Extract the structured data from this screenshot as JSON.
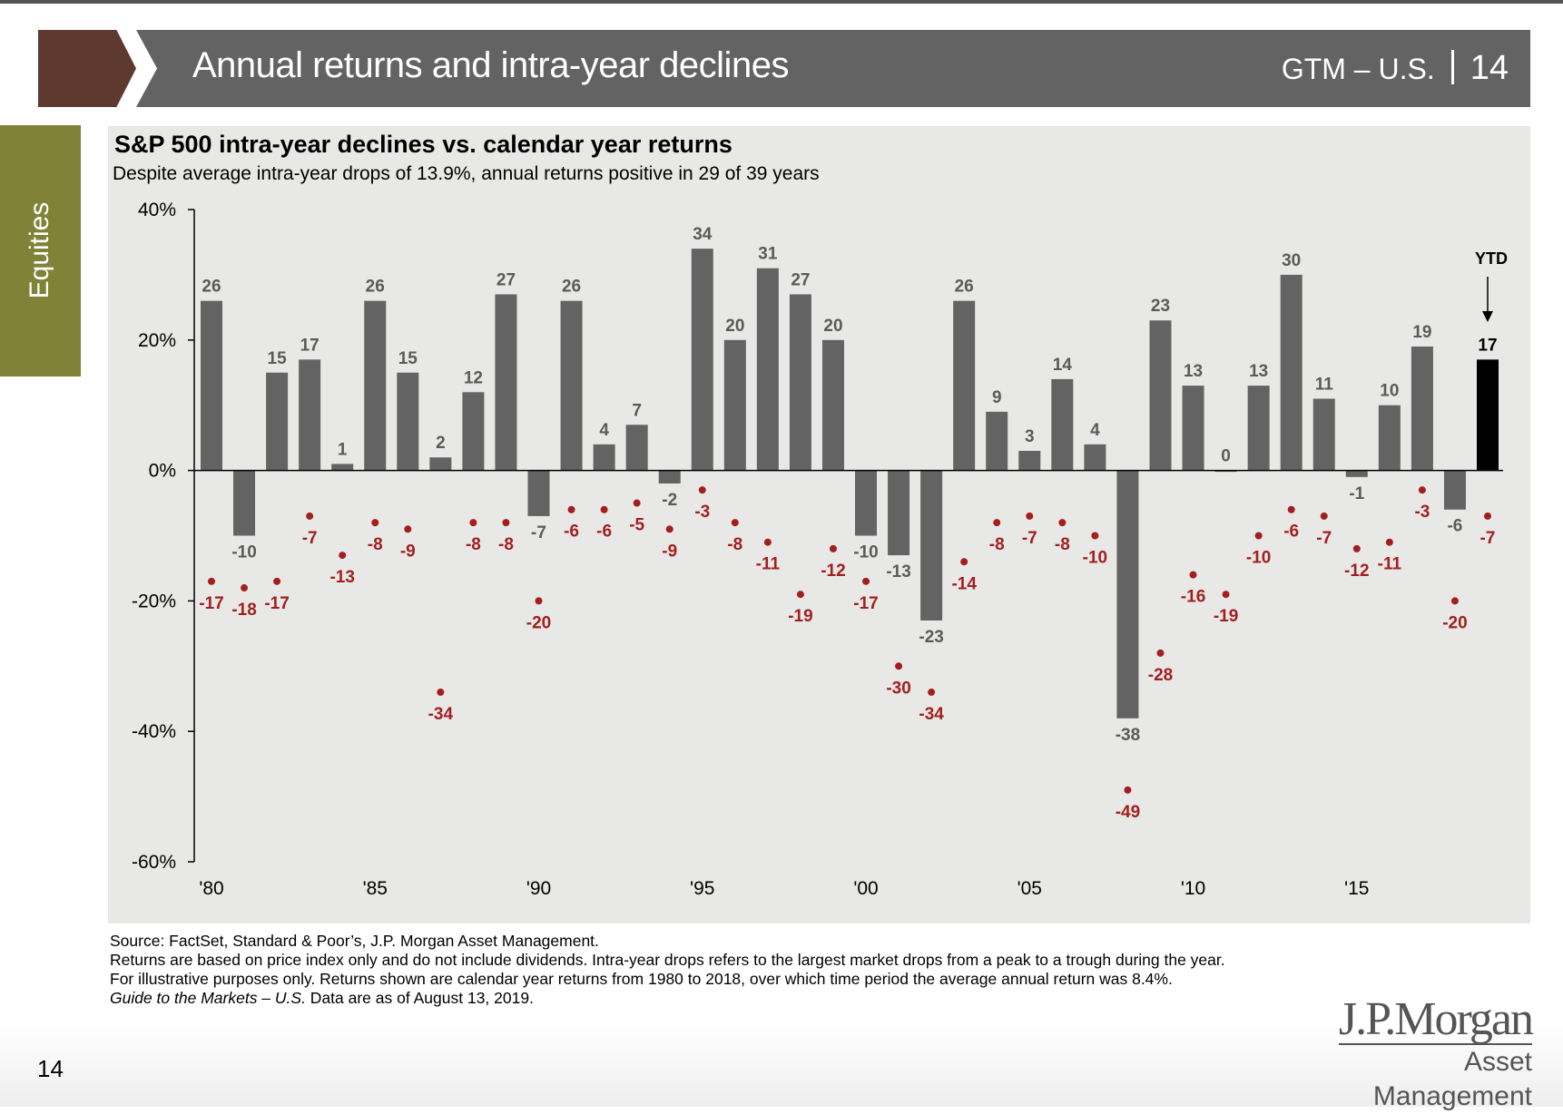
{
  "header": {
    "title": "Annual returns and intra-year declines",
    "section": "GTM – U.S.",
    "page": "14"
  },
  "sidebar": {
    "label": "Equities"
  },
  "chart_data": {
    "type": "bar",
    "title": "S&P 500 intra-year declines vs. calendar year returns",
    "subtitle": "Despite average intra-year drops of 13.9%, annual returns positive in 29 of 39 years",
    "years": [
      1980,
      1981,
      1982,
      1983,
      1984,
      1985,
      1986,
      1987,
      1988,
      1989,
      1990,
      1991,
      1992,
      1993,
      1994,
      1995,
      1996,
      1997,
      1998,
      1999,
      2000,
      2001,
      2002,
      2003,
      2004,
      2005,
      2006,
      2007,
      2008,
      2009,
      2010,
      2011,
      2012,
      2013,
      2014,
      2015,
      2016,
      2017,
      2018,
      2019
    ],
    "x_tick_labels": [
      "'80",
      "'85",
      "'90",
      "'95",
      "'00",
      "'05",
      "'10",
      "'15"
    ],
    "y_tick_labels": [
      "40%",
      "20%",
      "0%",
      "-20%",
      "-40%",
      "-60%"
    ],
    "ylim": [
      -60,
      40
    ],
    "series": [
      {
        "type": "bar",
        "color": "#636363",
        "values": [
          26,
          -10,
          15,
          17,
          1,
          26,
          15,
          2,
          12,
          27,
          -7,
          26,
          4,
          7,
          -2,
          34,
          20,
          31,
          27,
          20,
          -10,
          -13,
          -23,
          26,
          9,
          3,
          14,
          4,
          -38,
          23,
          13,
          0,
          13,
          30,
          11,
          -1,
          10,
          19,
          -6,
          17
        ]
      },
      {
        "type": "scatter",
        "color": "#a31f1f",
        "values": [
          -17,
          -18,
          -17,
          -7,
          -13,
          -8,
          -9,
          -34,
          -8,
          -8,
          -20,
          -6,
          -6,
          -5,
          -9,
          -3,
          -8,
          -11,
          -19,
          -12,
          -17,
          -30,
          -34,
          -14,
          -8,
          -7,
          -8,
          -10,
          -49,
          -28,
          -16,
          -19,
          -10,
          -6,
          -7,
          -12,
          -11,
          -3,
          -20,
          -7
        ]
      }
    ],
    "ytd_label": "YTD",
    "ytd_color": "#000000"
  },
  "footnotes": {
    "source": "Source: FactSet, Standard & Poor’s, J.P. Morgan Asset Management.",
    "note": "Returns are based on price index only and do not include dividends. Intra-year drops refers to the largest market drops from a peak to a trough during the year. For illustrative purposes only. Returns shown are calendar year returns from 1980 to 2018, over which time period the average annual return was 8.4%.",
    "guide_italic": "Guide to the Markets – U.S.",
    "guide_rest": " Data are as of August 13, 2019."
  },
  "page_number": "14",
  "logo": {
    "name": "J.P.Morgan",
    "sub": "Asset Management"
  }
}
